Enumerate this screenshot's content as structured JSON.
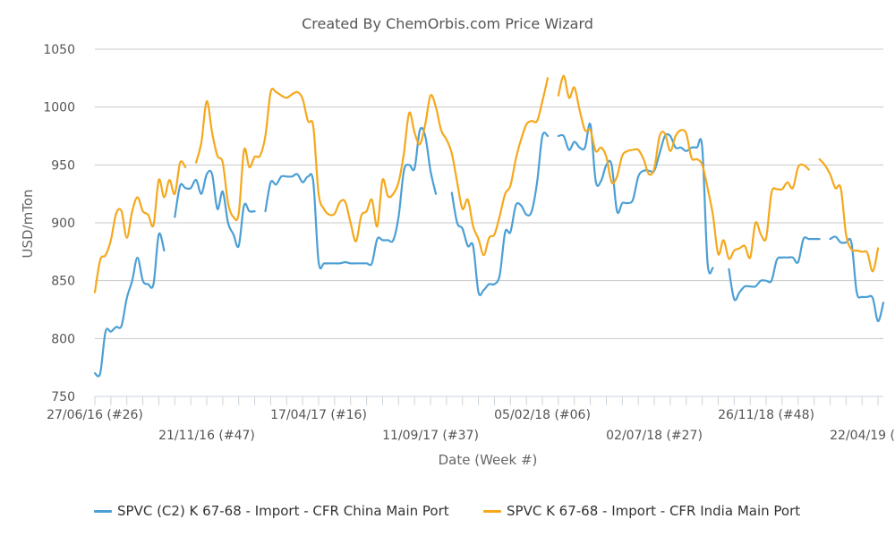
{
  "chart_data": {
    "type": "line",
    "title": "Created By ChemOrbis.com Price Wizard",
    "xlabel": "Date (Week #)",
    "ylabel": "USD/mTon",
    "ylim": [
      750,
      1050
    ],
    "yticks": [
      750,
      800,
      850,
      900,
      950,
      1000,
      1050
    ],
    "xlim": [
      0,
      148
    ],
    "xticks": [
      {
        "label": "27/06/16 (#26)",
        "x": 0
      },
      {
        "label": "21/11/16 (#47)",
        "x": 21
      },
      {
        "label": "17/04/17 (#16)",
        "x": 42
      },
      {
        "label": "11/09/17 (#37)",
        "x": 63
      },
      {
        "label": "05/02/18 (#06)",
        "x": 84
      },
      {
        "label": "02/07/18 (#27)",
        "x": 105
      },
      {
        "label": "26/11/18 (#48)",
        "x": 126
      },
      {
        "label": "22/04/19 (#17)",
        "x": 147
      }
    ],
    "grid": true,
    "legend": "bottom",
    "series": [
      {
        "name": "SPVC (C2) K 67-68 - Import - CFR China Main Port",
        "color": "#4b9fd5",
        "points": [
          [
            0,
            770
          ],
          [
            1,
            770
          ],
          [
            2,
            806
          ],
          [
            3,
            806
          ],
          [
            4,
            810
          ],
          [
            5,
            811
          ],
          [
            6,
            835
          ],
          [
            7,
            850
          ],
          [
            8,
            870
          ],
          [
            9,
            850
          ],
          [
            10,
            847
          ],
          [
            11,
            847
          ],
          [
            12,
            890
          ],
          [
            13,
            876
          ],
          null,
          [
            15,
            905
          ],
          [
            16,
            932
          ],
          [
            17,
            930
          ],
          [
            18,
            930
          ],
          [
            19,
            937
          ],
          [
            20,
            925
          ],
          [
            21,
            942
          ],
          [
            22,
            942
          ],
          [
            23,
            912
          ],
          [
            24,
            927
          ],
          [
            25,
            900
          ],
          [
            26,
            890
          ],
          [
            27,
            880
          ],
          [
            28,
            915
          ],
          [
            29,
            910
          ],
          [
            30,
            910
          ],
          null,
          [
            32,
            910
          ],
          [
            33,
            935
          ],
          [
            34,
            933
          ],
          [
            35,
            940
          ],
          [
            36,
            940
          ],
          [
            37,
            940
          ],
          [
            38,
            942
          ],
          [
            39,
            935
          ],
          [
            40,
            940
          ],
          [
            41,
            935
          ],
          [
            42,
            866
          ],
          [
            43,
            865
          ],
          [
            44,
            865
          ],
          [
            45,
            865
          ],
          [
            46,
            865
          ],
          [
            47,
            866
          ],
          [
            48,
            865
          ],
          [
            49,
            865
          ],
          [
            50,
            865
          ],
          [
            51,
            865
          ],
          [
            52,
            865
          ],
          [
            53,
            886
          ],
          [
            54,
            885
          ],
          [
            55,
            885
          ],
          [
            56,
            885
          ],
          [
            57,
            905
          ],
          [
            58,
            945
          ],
          [
            59,
            950
          ],
          [
            60,
            947
          ],
          [
            61,
            980
          ],
          [
            62,
            975
          ],
          [
            63,
            945
          ],
          [
            64,
            925
          ],
          null,
          [
            67,
            926
          ],
          [
            68,
            900
          ],
          [
            69,
            895
          ],
          [
            70,
            880
          ],
          [
            71,
            880
          ],
          [
            72,
            840
          ],
          [
            73,
            842
          ],
          [
            74,
            847
          ],
          [
            75,
            847
          ],
          [
            76,
            855
          ],
          [
            77,
            892
          ],
          [
            78,
            892
          ],
          [
            79,
            915
          ],
          [
            80,
            915
          ],
          [
            81,
            907
          ],
          [
            82,
            910
          ],
          [
            83,
            935
          ],
          [
            84,
            975
          ],
          [
            85,
            975
          ],
          null,
          [
            87,
            975
          ],
          [
            88,
            975
          ],
          [
            89,
            963
          ],
          [
            90,
            970
          ],
          [
            91,
            965
          ],
          [
            92,
            965
          ],
          [
            93,
            985
          ],
          [
            94,
            936
          ],
          [
            95,
            936
          ],
          [
            96,
            950
          ],
          [
            97,
            950
          ],
          [
            98,
            910
          ],
          [
            99,
            917
          ],
          [
            100,
            917
          ],
          [
            101,
            920
          ],
          [
            102,
            940
          ],
          [
            103,
            945
          ],
          [
            104,
            945
          ],
          [
            105,
            945
          ],
          [
            106,
            960
          ],
          [
            107,
            975
          ],
          [
            108,
            975
          ],
          [
            109,
            965
          ],
          [
            110,
            965
          ],
          [
            111,
            962
          ],
          [
            112,
            965
          ],
          [
            113,
            965
          ],
          [
            114,
            965
          ],
          [
            115,
            865
          ],
          [
            116,
            861
          ],
          null,
          [
            119,
            860
          ],
          [
            120,
            834
          ],
          [
            121,
            840
          ],
          [
            122,
            845
          ],
          [
            123,
            845
          ],
          [
            124,
            845
          ],
          [
            125,
            850
          ],
          [
            126,
            850
          ],
          [
            127,
            850
          ],
          [
            128,
            868
          ],
          [
            129,
            870
          ],
          [
            130,
            870
          ],
          [
            131,
            870
          ],
          [
            132,
            866
          ],
          [
            133,
            886
          ],
          [
            134,
            886
          ],
          [
            135,
            886
          ],
          [
            136,
            886
          ],
          null,
          [
            138,
            886
          ],
          [
            139,
            888
          ],
          [
            140,
            883
          ],
          [
            141,
            883
          ],
          [
            142,
            883
          ],
          [
            143,
            840
          ],
          [
            144,
            836
          ],
          [
            145,
            836
          ],
          [
            146,
            835
          ],
          [
            147,
            815
          ],
          [
            148,
            831
          ]
        ]
      },
      {
        "name": "SPVC K 67-68 - Import - CFR India Main Port",
        "color": "#f5a81c",
        "points": [
          [
            0,
            840
          ],
          [
            1,
            868
          ],
          [
            2,
            872
          ],
          [
            3,
            885
          ],
          [
            4,
            908
          ],
          [
            5,
            910
          ],
          [
            6,
            887
          ],
          [
            7,
            910
          ],
          [
            8,
            922
          ],
          [
            9,
            910
          ],
          [
            10,
            907
          ],
          [
            11,
            898
          ],
          [
            12,
            937
          ],
          [
            13,
            922
          ],
          [
            14,
            937
          ],
          [
            15,
            925
          ],
          [
            16,
            952
          ],
          [
            17,
            948
          ],
          null,
          [
            19,
            952
          ],
          [
            20,
            970
          ],
          [
            21,
            1005
          ],
          [
            22,
            978
          ],
          [
            23,
            958
          ],
          [
            24,
            952
          ],
          [
            25,
            917
          ],
          [
            26,
            905
          ],
          [
            27,
            908
          ],
          [
            28,
            963
          ],
          [
            29,
            948
          ],
          [
            30,
            957
          ],
          [
            31,
            958
          ],
          [
            32,
            975
          ],
          [
            33,
            1013
          ],
          [
            34,
            1013
          ],
          [
            35,
            1010
          ],
          [
            36,
            1008
          ],
          [
            37,
            1011
          ],
          [
            38,
            1013
          ],
          [
            39,
            1007
          ],
          [
            40,
            988
          ],
          [
            41,
            983
          ],
          [
            42,
            925
          ],
          [
            43,
            912
          ],
          [
            44,
            907
          ],
          [
            45,
            908
          ],
          [
            46,
            918
          ],
          [
            47,
            918
          ],
          [
            48,
            900
          ],
          [
            49,
            884
          ],
          [
            50,
            906
          ],
          [
            51,
            910
          ],
          [
            52,
            920
          ],
          [
            53,
            897
          ],
          [
            54,
            937
          ],
          [
            55,
            923
          ],
          [
            56,
            925
          ],
          [
            57,
            935
          ],
          [
            58,
            960
          ],
          [
            59,
            995
          ],
          [
            60,
            978
          ],
          [
            61,
            968
          ],
          [
            62,
            985
          ],
          [
            63,
            1010
          ],
          [
            64,
            1000
          ],
          [
            65,
            980
          ],
          [
            66,
            972
          ],
          [
            67,
            960
          ],
          [
            68,
            935
          ],
          [
            69,
            912
          ],
          [
            70,
            920
          ],
          [
            71,
            897
          ],
          [
            72,
            886
          ],
          [
            73,
            872
          ],
          [
            74,
            887
          ],
          [
            75,
            890
          ],
          [
            76,
            906
          ],
          [
            77,
            925
          ],
          [
            78,
            932
          ],
          [
            79,
            955
          ],
          [
            80,
            972
          ],
          [
            81,
            985
          ],
          [
            82,
            988
          ],
          [
            83,
            988
          ],
          [
            84,
            1005
          ],
          [
            85,
            1025
          ],
          null,
          [
            87,
            1010
          ],
          [
            88,
            1027
          ],
          [
            89,
            1008
          ],
          [
            90,
            1017
          ],
          [
            91,
            997
          ],
          [
            92,
            980
          ],
          [
            93,
            980
          ],
          [
            94,
            962
          ],
          [
            95,
            965
          ],
          [
            96,
            957
          ],
          [
            97,
            935
          ],
          [
            98,
            940
          ],
          [
            99,
            958
          ],
          [
            100,
            962
          ],
          [
            101,
            963
          ],
          [
            102,
            963
          ],
          [
            103,
            955
          ],
          [
            104,
            942
          ],
          [
            105,
            947
          ],
          [
            106,
            975
          ],
          [
            107,
            977
          ],
          [
            108,
            962
          ],
          [
            109,
            975
          ],
          [
            110,
            980
          ],
          [
            111,
            977
          ],
          [
            112,
            956
          ],
          [
            113,
            955
          ],
          [
            114,
            950
          ],
          [
            115,
            930
          ],
          [
            116,
            907
          ],
          [
            117,
            873
          ],
          [
            118,
            885
          ],
          [
            119,
            869
          ],
          [
            120,
            876
          ],
          [
            121,
            878
          ],
          [
            122,
            880
          ],
          [
            123,
            870
          ],
          [
            124,
            900
          ],
          [
            125,
            890
          ],
          [
            126,
            887
          ],
          [
            127,
            926
          ],
          [
            128,
            929
          ],
          [
            129,
            929
          ],
          [
            130,
            935
          ],
          [
            131,
            930
          ],
          [
            132,
            948
          ],
          [
            133,
            950
          ],
          [
            134,
            946
          ],
          null,
          [
            136,
            955
          ],
          [
            137,
            950
          ],
          [
            138,
            942
          ],
          [
            139,
            930
          ],
          [
            140,
            930
          ],
          [
            141,
            890
          ],
          [
            142,
            877
          ],
          [
            143,
            876
          ],
          [
            144,
            875
          ],
          [
            145,
            874
          ],
          [
            146,
            858
          ],
          [
            147,
            878
          ]
        ]
      }
    ]
  }
}
